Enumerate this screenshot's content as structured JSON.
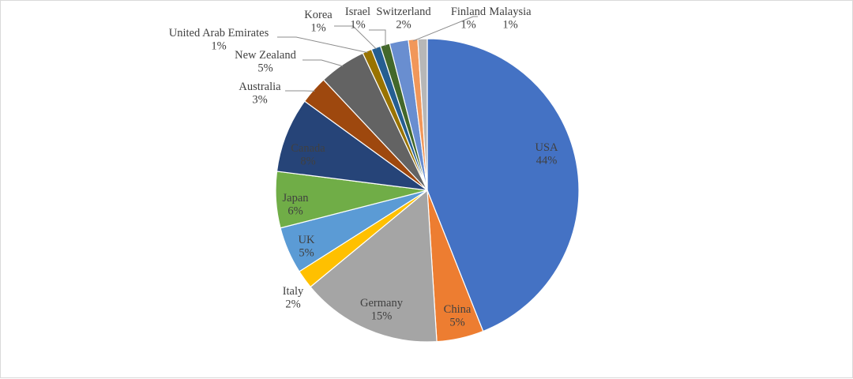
{
  "chart_data": {
    "type": "pie",
    "title": "",
    "slices": [
      {
        "label": "USA",
        "value": 44,
        "value_label": "44%",
        "color": "#4472C4"
      },
      {
        "label": "China",
        "value": 5,
        "value_label": "5%",
        "color": "#ED7D31"
      },
      {
        "label": "Germany",
        "value": 15,
        "value_label": "15%",
        "color": "#A5A5A5"
      },
      {
        "label": "Italy",
        "value": 2,
        "value_label": "2%",
        "color": "#FFC000"
      },
      {
        "label": "UK",
        "value": 5,
        "value_label": "5%",
        "color": "#5B9BD5"
      },
      {
        "label": "Japan",
        "value": 6,
        "value_label": "6%",
        "color": "#70AD47"
      },
      {
        "label": "Canada",
        "value": 8,
        "value_label": "8%",
        "color": "#264478"
      },
      {
        "label": "Australia",
        "value": 3,
        "value_label": "3%",
        "color": "#9E480E"
      },
      {
        "label": "New Zealand",
        "value": 5,
        "value_label": "5%",
        "color": "#636363"
      },
      {
        "label": "United Arab Emirates",
        "value": 1,
        "value_label": "1%",
        "color": "#997300"
      },
      {
        "label": "Korea",
        "value": 1,
        "value_label": "1%",
        "color": "#255E91"
      },
      {
        "label": "Israel",
        "value": 1,
        "value_label": "1%",
        "color": "#43682B"
      },
      {
        "label": "Switzerland",
        "value": 2,
        "value_label": "2%",
        "color": "#698ED0"
      },
      {
        "label": "Finland",
        "value": 1,
        "value_label": "1%",
        "color": "#F1975A"
      },
      {
        "label": "Malaysia",
        "value": 1,
        "value_label": "1%",
        "color": "#B7B7B7"
      }
    ],
    "legend": "none"
  }
}
